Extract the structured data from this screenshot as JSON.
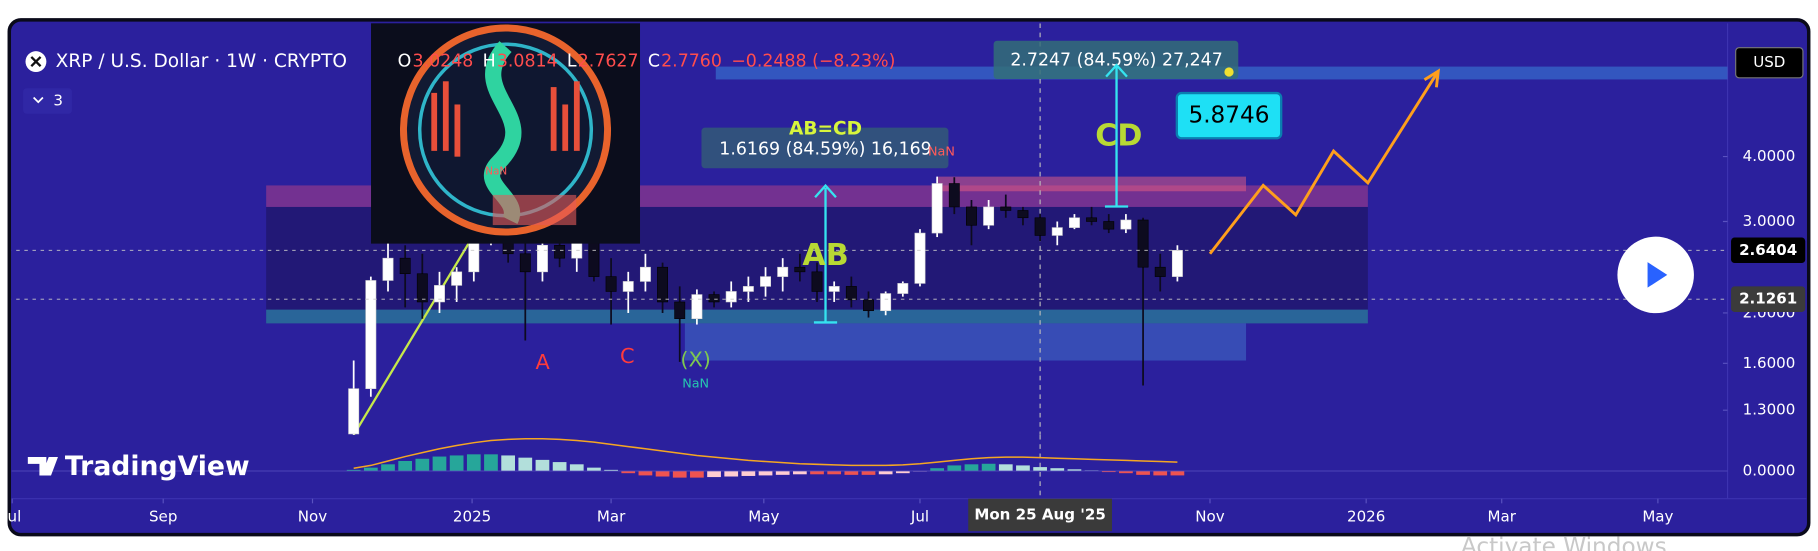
{
  "chart_data": {
    "type": "candlestick",
    "title": "XRP / U.S. Dollar · 1W · CRYPTO",
    "ohlc_legend": [
      {
        "label": "O",
        "value": "3.0248"
      },
      {
        "label": "H",
        "value": "3.0814"
      },
      {
        "label": "L",
        "value": "2.7627"
      },
      {
        "label": "C",
        "value": "2.7760"
      }
    ],
    "change": "−0.2488 (−8.23%)",
    "indicator_count": "3",
    "currency": "USD",
    "log_scale": true,
    "up_color": "#ffffff",
    "down_color": "#0d0b1f",
    "x": [
      19.6,
      20.6,
      21.6,
      22.6,
      23.6,
      24.6,
      25.6,
      26.6,
      27.6,
      28.6,
      29.6,
      30.6,
      31.6,
      32.6,
      33.6,
      34.6,
      35.6,
      36.6,
      37.6,
      38.6,
      39.6,
      40.6,
      41.6,
      42.6,
      43.6,
      44.6,
      45.6,
      46.6,
      47.6,
      48.6,
      49.6,
      50.6,
      51.6,
      52.6,
      53.6,
      54.6,
      55.6,
      56.6,
      57.6,
      58.6,
      59.6,
      60.6,
      61.6,
      62.6,
      63.6,
      64.6,
      65.6,
      66.6,
      67.6
    ],
    "open": [
      1.17,
      1.43,
      2.31,
      2.55,
      2.38,
      2.1,
      2.26,
      2.4,
      2.8,
      3.05,
      2.6,
      2.4,
      2.7,
      2.55,
      2.85,
      2.35,
      2.2,
      2.3,
      2.45,
      2.1,
      1.95,
      2.17,
      2.1,
      2.2,
      2.25,
      2.35,
      2.45,
      2.4,
      2.2,
      2.25,
      2.12,
      2.02,
      2.18,
      2.28,
      2.85,
      3.55,
      3.2,
      2.95,
      3.2,
      3.15,
      3.05,
      2.82,
      2.92,
      3.05,
      3.0,
      2.9,
      3.02,
      2.45,
      2.35
    ],
    "high": [
      1.62,
      2.35,
      2.9,
      2.7,
      2.6,
      2.4,
      2.45,
      2.8,
      3.4,
      3.3,
      2.85,
      2.75,
      2.95,
      3.02,
      3.0,
      2.55,
      2.4,
      2.6,
      2.5,
      2.25,
      2.22,
      2.2,
      2.3,
      2.35,
      2.45,
      2.55,
      2.6,
      2.5,
      2.3,
      2.35,
      2.2,
      2.2,
      2.3,
      2.9,
      3.66,
      3.65,
      3.3,
      3.3,
      3.38,
      3.2,
      3.1,
      3.0,
      3.1,
      3.2,
      3.1,
      3.1,
      3.05,
      2.6,
      2.7
    ],
    "low": [
      1.12,
      1.38,
      2.2,
      2.05,
      1.95,
      2.0,
      2.1,
      2.3,
      2.7,
      2.5,
      1.77,
      2.3,
      2.45,
      2.4,
      2.3,
      1.9,
      2.0,
      2.2,
      2.0,
      1.61,
      1.9,
      2.05,
      2.05,
      2.1,
      2.15,
      2.2,
      2.3,
      2.1,
      2.1,
      2.05,
      1.96,
      1.98,
      2.15,
      2.25,
      2.8,
      3.1,
      2.7,
      2.9,
      3.05,
      2.95,
      2.75,
      2.7,
      2.9,
      2.95,
      2.85,
      2.85,
      1.45,
      2.2,
      2.3
    ],
    "close": [
      1.43,
      2.31,
      2.55,
      2.38,
      2.1,
      2.26,
      2.4,
      2.8,
      3.05,
      2.6,
      2.4,
      2.7,
      2.55,
      2.85,
      2.35,
      2.2,
      2.3,
      2.45,
      2.1,
      1.95,
      2.17,
      2.1,
      2.2,
      2.25,
      2.35,
      2.45,
      2.4,
      2.2,
      2.25,
      2.12,
      2.02,
      2.18,
      2.28,
      2.85,
      3.55,
      3.2,
      2.95,
      3.2,
      3.15,
      3.05,
      2.82,
      2.92,
      3.05,
      3.0,
      2.9,
      3.02,
      2.45,
      2.35,
      2.64
    ],
    "xlim": [
      -1.01,
      99.66
    ],
    "xticks": [
      {
        "value": -0.3,
        "label": "Jul"
      },
      {
        "value": 8.5,
        "label": "Sep"
      },
      {
        "value": 17.2,
        "label": "Nov"
      },
      {
        "value": 26.5,
        "label": "2025"
      },
      {
        "value": 34.6,
        "label": "Mar"
      },
      {
        "value": 43.5,
        "label": "May"
      },
      {
        "value": 52.6,
        "label": "Jul"
      },
      {
        "value": 69.5,
        "label": "Nov"
      },
      {
        "value": 78.6,
        "label": "2026"
      },
      {
        "value": 86.5,
        "label": "Mar"
      },
      {
        "value": 95.6,
        "label": "May"
      }
    ],
    "ylim": [
      1.165,
      7.22
    ],
    "yticks": [
      {
        "value": 4,
        "label": "4.0000"
      },
      {
        "value": 3,
        "label": "3.0000"
      },
      {
        "value": 2,
        "label": "2.0000"
      },
      {
        "value": 1.6,
        "label": "1.6000"
      },
      {
        "value": 1.3,
        "label": "1.3000"
      }
    ],
    "price_labels": [
      {
        "value": 2.6404,
        "label": "2.6404",
        "color": "#000000"
      },
      {
        "value": 2.1261,
        "label": "2.1261",
        "color": "#3b3b3b"
      }
    ],
    "crosshair": {
      "value": 59.6,
      "label": "Mon 25 Aug '25"
    },
    "zones": [
      {
        "x": [
          14.5,
          78.7
        ],
        "values": [
          2.03,
          3.2
        ],
        "color": "rgba(25,15,70,0.45)"
      },
      {
        "x": [
          14.5,
          78.7
        ],
        "values": [
          3.2,
          3.52
        ],
        "color": "rgba(205,70,130,0.45)"
      },
      {
        "x": [
          14.5,
          78.7
        ],
        "values": [
          1.91,
          2.03
        ],
        "color": "rgba(40,170,150,0.5)"
      },
      {
        "x": [
          38.9,
          71.6
        ],
        "values": [
          1.62,
          1.91
        ],
        "color": "rgba(70,130,210,0.45)"
      },
      {
        "x": [
          53.6,
          71.6
        ],
        "values": [
          3.43,
          3.66
        ],
        "color": "rgba(235,95,130,0.5)"
      },
      {
        "x": [
          40.7,
          99.66
        ],
        "values": [
          5.63,
          5.96
        ],
        "color": "rgba(60,140,225,0.5)"
      }
    ],
    "trendline": {
      "color": "#c6e84a",
      "x": [
        19.6,
        27.5
      ],
      "values": [
        1.165,
        3.17
      ]
    },
    "projection": {
      "color": "#ff9f1c",
      "x": [
        69.5,
        72.6,
        74.5,
        76.7,
        78.7,
        82.8
      ],
      "values": [
        2.6,
        3.52,
        3.09,
        4.1,
        3.56,
        5.84
      ]
    },
    "target": {
      "value": 5.8746,
      "label": "5.8746"
    },
    "annotations": [
      "AB=CD",
      "1.6169 (84.59%) 16,169",
      "2.7247 (84.59%) 27,247",
      "CD",
      "AB",
      "A",
      "C",
      "(X)",
      "NaN",
      "NaN",
      "NaN"
    ],
    "indicator": {
      "ylim": [
        -0.5,
        0.65
      ],
      "yticks": [
        {
          "value": 0,
          "label": "0.0000"
        }
      ],
      "colors": [
        "#26a69a",
        "#b2dfdb",
        "#ef5350",
        "#ffcdd2"
      ],
      "histogram": [
        0.02,
        0.06,
        0.12,
        0.18,
        0.22,
        0.26,
        0.28,
        0.3,
        0.3,
        0.28,
        0.24,
        0.2,
        0.16,
        0.12,
        0.06,
        0.02,
        -0.04,
        -0.08,
        -0.1,
        -0.12,
        -0.12,
        -0.11,
        -0.1,
        -0.09,
        -0.08,
        -0.07,
        -0.06,
        -0.06,
        -0.06,
        -0.07,
        -0.07,
        -0.06,
        -0.04,
        -0.01,
        0.05,
        0.1,
        0.12,
        0.13,
        0.12,
        0.1,
        0.07,
        0.05,
        0.03,
        0.01,
        -0.02,
        -0.04,
        -0.07,
        -0.08,
        -0.08
      ],
      "signal": {
        "color": "#f5a623",
        "values": [
          0.05,
          0.1,
          0.18,
          0.26,
          0.33,
          0.4,
          0.46,
          0.51,
          0.55,
          0.57,
          0.58,
          0.58,
          0.57,
          0.55,
          0.52,
          0.48,
          0.44,
          0.4,
          0.36,
          0.32,
          0.28,
          0.25,
          0.22,
          0.19,
          0.17,
          0.15,
          0.13,
          0.12,
          0.11,
          0.1,
          0.1,
          0.1,
          0.11,
          0.13,
          0.16,
          0.19,
          0.22,
          0.24,
          0.25,
          0.25,
          0.24,
          0.23,
          0.22,
          0.21,
          0.2,
          0.19,
          0.18,
          0.17,
          0.16
        ]
      }
    },
    "brand": "TradingView",
    "watermark": "Activate Windows"
  }
}
